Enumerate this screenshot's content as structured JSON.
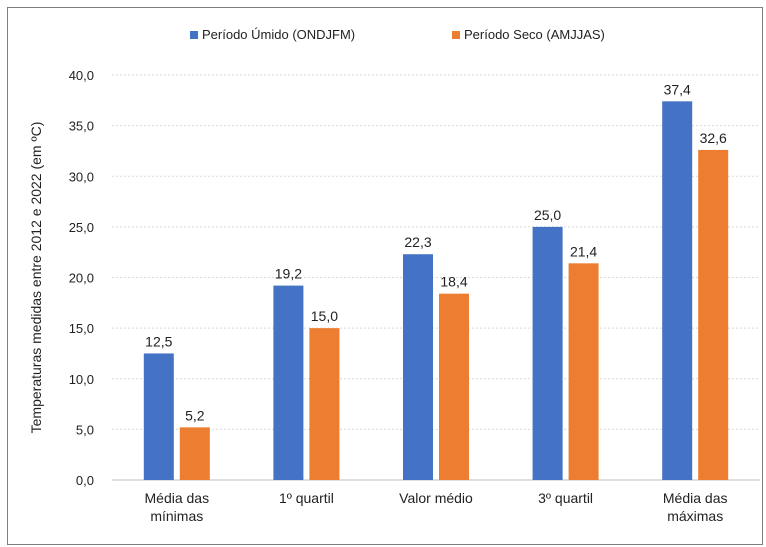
{
  "chart_data": {
    "type": "bar",
    "categories": [
      [
        "Média das",
        "mínimas"
      ],
      [
        "1º quartil"
      ],
      [
        "Valor médio"
      ],
      [
        "3º quartil"
      ],
      [
        "Média das",
        "máximas"
      ]
    ],
    "series": [
      {
        "name": "Período Úmido (ONDJFM)",
        "color": "#4472C4",
        "values": [
          12.5,
          19.2,
          22.3,
          25.0,
          37.4
        ],
        "labels": [
          "12,5",
          "19,2",
          "22,3",
          "25,0",
          "37,4"
        ]
      },
      {
        "name": "Período Seco (AMJJAS)",
        "color": "#ED7D31",
        "values": [
          5.2,
          15.0,
          18.4,
          21.4,
          32.6
        ],
        "labels": [
          "5,2",
          "15,0",
          "18,4",
          "21,4",
          "32,6"
        ]
      }
    ],
    "ylabel": "Temperaturas medidas entre 2012 e 2022 (em ºC)",
    "ylim": [
      0,
      40
    ],
    "yticks": [
      0,
      5,
      10,
      15,
      20,
      25,
      30,
      35,
      40
    ],
    "ytick_labels": [
      "0,0",
      "5,0",
      "10,0",
      "15,0",
      "20,0",
      "25,0",
      "30,0",
      "35,0",
      "40,0"
    ],
    "grid": true,
    "legend_position": "top"
  }
}
